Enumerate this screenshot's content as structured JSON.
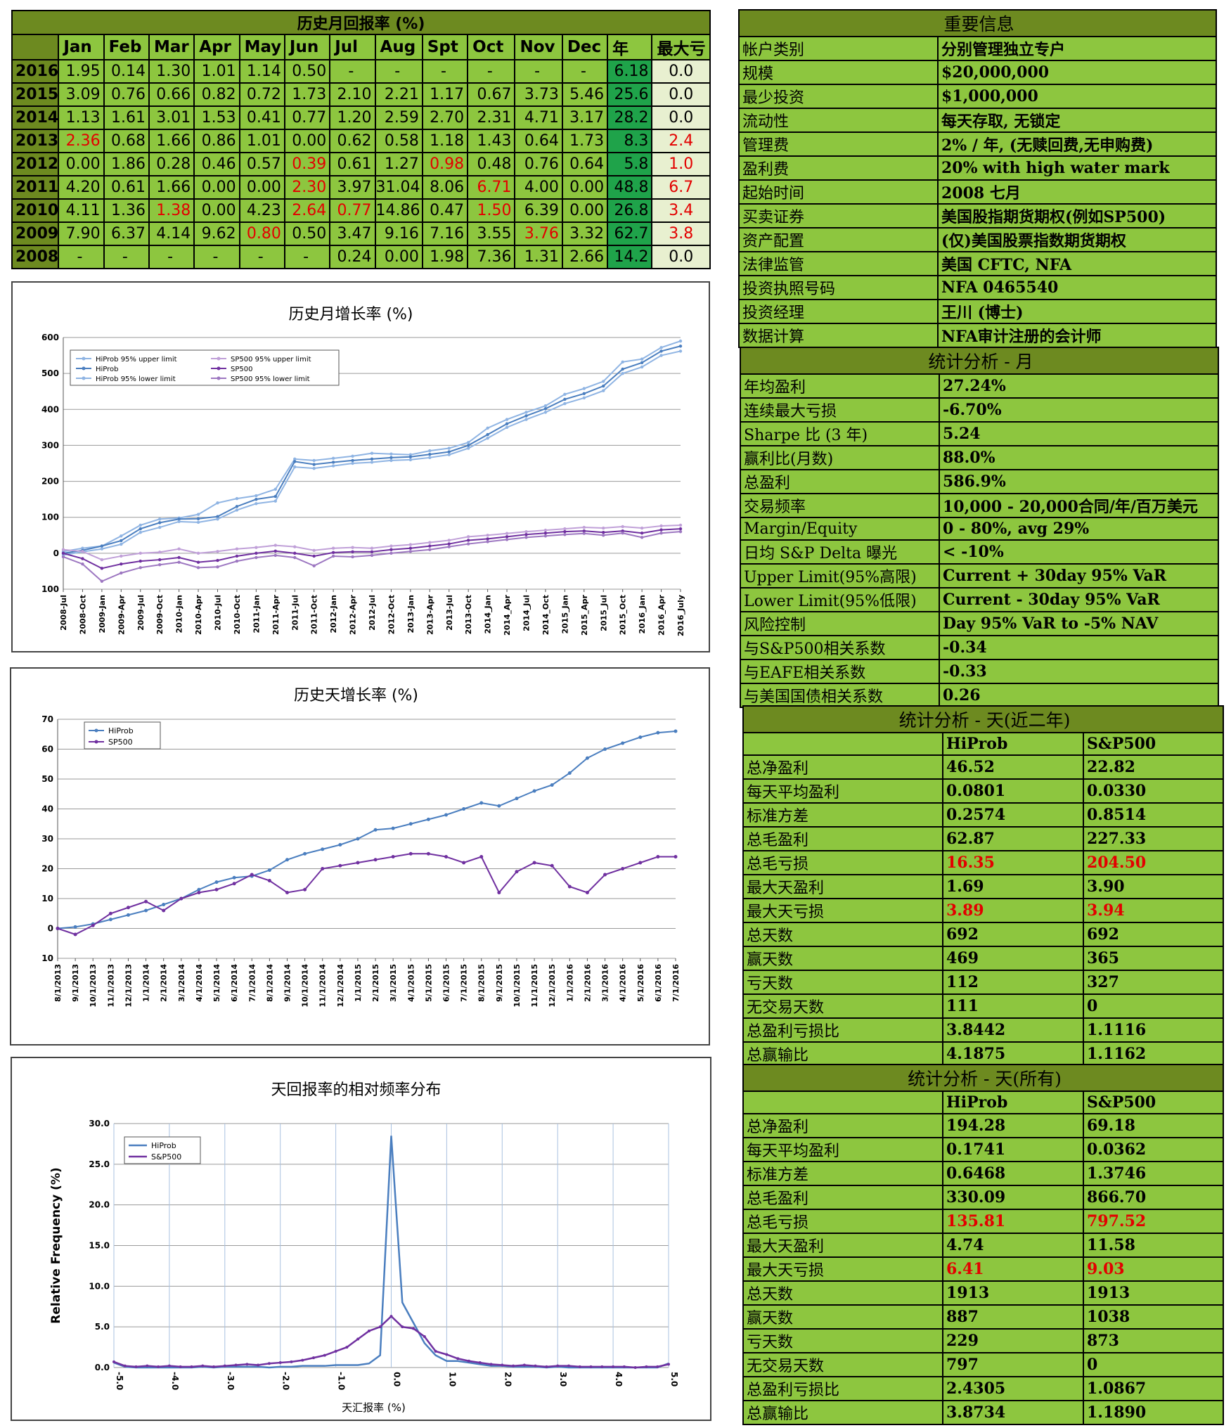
{
  "monthly_table": {
    "title": "历史月回报率 (%)",
    "headers": [
      "",
      "Jan",
      "Feb",
      "Mar",
      "Apr",
      "May",
      "Jun",
      "Jul",
      "Aug",
      "Spt",
      "Oct",
      "Nov",
      "Dec",
      "年",
      "最大亏"
    ],
    "rows": [
      {
        "year": "2016",
        "cells": [
          "1.95",
          "0.14",
          "1.30",
          "1.01",
          "1.14",
          "0.50",
          "-",
          "-",
          "-",
          "-",
          "-",
          "-"
        ],
        "red": [],
        "annual": "6.18",
        "maxdd": "0.0",
        "ddred": false
      },
      {
        "year": "2015",
        "cells": [
          "3.09",
          "0.76",
          "0.66",
          "0.82",
          "0.72",
          "1.73",
          "2.10",
          "2.21",
          "1.17",
          "0.67",
          "3.73",
          "5.46"
        ],
        "red": [],
        "annual": "25.6",
        "maxdd": "0.0",
        "ddred": false
      },
      {
        "year": "2014",
        "cells": [
          "1.13",
          "1.61",
          "3.01",
          "1.53",
          "0.41",
          "0.77",
          "1.20",
          "2.59",
          "2.70",
          "2.31",
          "4.71",
          "3.17"
        ],
        "red": [],
        "annual": "28.2",
        "maxdd": "0.0",
        "ddred": false
      },
      {
        "year": "2013",
        "cells": [
          "2.36",
          "0.68",
          "1.66",
          "0.86",
          "1.01",
          "0.00",
          "0.62",
          "0.58",
          "1.18",
          "1.43",
          "0.64",
          "1.73"
        ],
        "red": [
          0
        ],
        "annual": "8.3",
        "maxdd": "2.4",
        "ddred": true
      },
      {
        "year": "2012",
        "cells": [
          "0.00",
          "1.86",
          "0.28",
          "0.46",
          "0.57",
          "0.39",
          "0.61",
          "1.27",
          "0.98",
          "0.48",
          "0.76",
          "0.64"
        ],
        "red": [
          5,
          8
        ],
        "annual": "5.8",
        "maxdd": "1.0",
        "ddred": true
      },
      {
        "year": "2011",
        "cells": [
          "4.20",
          "0.61",
          "1.66",
          "0.00",
          "0.00",
          "2.30",
          "3.97",
          "31.04",
          "8.06",
          "6.71",
          "4.00",
          "0.00"
        ],
        "red": [
          5,
          9
        ],
        "annual": "48.8",
        "maxdd": "6.7",
        "ddred": true
      },
      {
        "year": "2010",
        "cells": [
          "4.11",
          "1.36",
          "1.38",
          "0.00",
          "4.23",
          "2.64",
          "0.77",
          "14.86",
          "0.47",
          "1.50",
          "6.39",
          "0.00"
        ],
        "red": [
          2,
          5,
          6,
          9
        ],
        "annual": "26.8",
        "maxdd": "3.4",
        "ddred": true
      },
      {
        "year": "2009",
        "cells": [
          "7.90",
          "6.37",
          "4.14",
          "9.62",
          "0.80",
          "0.50",
          "3.47",
          "9.16",
          "7.16",
          "3.55",
          "3.76",
          "3.32"
        ],
        "red": [
          4,
          10
        ],
        "annual": "62.7",
        "maxdd": "3.8",
        "ddred": true
      },
      {
        "year": "2008",
        "cells": [
          "-",
          "-",
          "-",
          "-",
          "-",
          "-",
          "0.24",
          "0.00",
          "1.98",
          "7.36",
          "1.31",
          "2.66"
        ],
        "red": [],
        "annual": "14.2",
        "maxdd": "0.0",
        "ddred": false
      }
    ]
  },
  "info_table": {
    "title": "重要信息",
    "rows": [
      [
        "帐户类别",
        "分别管理独立专户"
      ],
      [
        "规模",
        "$20,000,000"
      ],
      [
        "最少投资",
        "$1,000,000"
      ],
      [
        "流动性",
        "每天存取, 无锁定"
      ],
      [
        "管理费",
        "2% / 年, (无赎回费,无申购费)"
      ],
      [
        "盈利费",
        "20% with high water mark"
      ],
      [
        "起始时间",
        "2008 七月"
      ],
      [
        "买卖证券",
        "美国股指期货期权(例如SP500)"
      ],
      [
        "资产配置",
        "(仅)美国股票指数期货期权"
      ],
      [
        "法律监管",
        "美国 CFTC, NFA"
      ],
      [
        "投资执照号码",
        "NFA 0465540"
      ],
      [
        "投资经理",
        "王川 (博士)"
      ],
      [
        "数据计算",
        "NFA审计注册的会计师"
      ]
    ]
  },
  "stats_month": {
    "title": "统计分析 - 月",
    "rows": [
      [
        "年均盈利",
        "27.24%"
      ],
      [
        "连续最大亏损",
        "-6.70%"
      ],
      [
        "Sharpe 比 (3 年)",
        "5.24"
      ],
      [
        "赢利比(月数)",
        "88.0%"
      ],
      [
        "总盈利",
        "586.9%"
      ],
      [
        "交易频率",
        "10,000 - 20,000合同/年/百万美元"
      ],
      [
        "Margin/Equity",
        "0 - 80%, avg 29%"
      ],
      [
        "日均 S&P Delta 曝光",
        "< -10%"
      ],
      [
        "Upper Limit(95%高限)",
        "Current + 30day 95% VaR"
      ],
      [
        "Lower Limit(95%低限)",
        "Current - 30day 95% VaR"
      ],
      [
        "风险控制",
        "Day 95% VaR to -5% NAV"
      ],
      [
        "与S&P500相关系数",
        "-0.34"
      ],
      [
        "与EAFE相关系数",
        "-0.33"
      ],
      [
        "与美国国债相关系数",
        "0.26"
      ]
    ]
  },
  "stats_2y": {
    "title": "统计分析 - 天(近二年)",
    "cols": [
      "HiProb",
      "S&P500"
    ],
    "rows": [
      [
        "总净盈利",
        "46.52",
        "22.82",
        false
      ],
      [
        "每天平均盈利",
        "0.0801",
        "0.0330",
        false
      ],
      [
        "标准方差",
        "0.2574",
        "0.8514",
        false
      ],
      [
        "总毛盈利",
        "62.87",
        "227.33",
        false
      ],
      [
        "总毛亏损",
        "16.35",
        "204.50",
        true
      ],
      [
        "最大天盈利",
        "1.69",
        "3.90",
        false
      ],
      [
        "最大天亏损",
        "3.89",
        "3.94",
        true
      ],
      [
        "总天数",
        "692",
        "692",
        false
      ],
      [
        "赢天数",
        "469",
        "365",
        false
      ],
      [
        "亏天数",
        "112",
        "327",
        false
      ],
      [
        "无交易天数",
        "111",
        "0",
        false
      ],
      [
        "总盈利亏损比",
        "3.8442",
        "1.1116",
        false
      ],
      [
        "总赢输比",
        "4.1875",
        "1.1162",
        false
      ]
    ]
  },
  "stats_all": {
    "title": "统计分析 - 天(所有)",
    "cols": [
      "HiProb",
      "S&P500"
    ],
    "rows": [
      [
        "总净盈利",
        "194.28",
        "69.18",
        false
      ],
      [
        "每天平均盈利",
        "0.1741",
        "0.0362",
        false
      ],
      [
        "标准方差",
        "0.6468",
        "1.3746",
        false
      ],
      [
        "总毛盈利",
        "330.09",
        "866.70",
        false
      ],
      [
        "总毛亏损",
        "135.81",
        "797.52",
        true
      ],
      [
        "最大天盈利",
        "4.74",
        "11.58",
        false
      ],
      [
        "最大天亏损",
        "6.41",
        "9.03",
        true
      ],
      [
        "总天数",
        "1913",
        "1913",
        false
      ],
      [
        "赢天数",
        "887",
        "1038",
        false
      ],
      [
        "亏天数",
        "229",
        "873",
        false
      ],
      [
        "无交易天数",
        "797",
        "0",
        false
      ],
      [
        "总盈利亏损比",
        "2.4305",
        "1.0867",
        false
      ],
      [
        "总赢输比",
        "3.8734",
        "1.1890",
        false
      ]
    ]
  },
  "chart_data": [
    {
      "type": "line",
      "title": "历史月增长率 (%)",
      "x": [
        "2008-Jul",
        "2008-Oct",
        "2009-Jan",
        "2009-Apr",
        "2009-Jul",
        "2009-Oct",
        "2010-Jan",
        "2010-Apr",
        "2010-Jul",
        "2010-Oct",
        "2011-Jan",
        "2011-Apr",
        "2011-Jul",
        "2011-Oct",
        "2012-Jan",
        "2012-Apr",
        "2012-Jul",
        "2012-Oct",
        "2013-Jan",
        "2013-Apr",
        "2013-Jul",
        "2013-Oct",
        "2014_Jan",
        "2014_Apr",
        "2014_Jul",
        "2014_Oct",
        "2015_Jan",
        "2015_Apr",
        "2015_Jul",
        "2015_Oct",
        "2016_Jan",
        "2016_Apr",
        "2016_July"
      ],
      "ylim": [
        -100,
        600
      ],
      "yticks": [
        -100,
        0,
        100,
        200,
        300,
        400,
        500,
        600
      ],
      "ytick_labels": [
        "100",
        "0",
        "100",
        "200",
        "300",
        "400",
        "500",
        "600"
      ],
      "series": [
        {
          "name": "HiProb 95% upper limit",
          "color": "#8fb4e3",
          "values": [
            5,
            14,
            20,
            48,
            78,
            95,
            98,
            108,
            140,
            152,
            160,
            178,
            262,
            258,
            264,
            270,
            278,
            276,
            274,
            285,
            292,
            308,
            348,
            372,
            392,
            410,
            442,
            458,
            478,
            532,
            540,
            572,
            590
          ]
        },
        {
          "name": "HiProb",
          "color": "#4a7ebf",
          "values": [
            0,
            8,
            20,
            35,
            68,
            85,
            95,
            96,
            102,
            130,
            150,
            158,
            255,
            247,
            253,
            258,
            262,
            266,
            268,
            275,
            282,
            300,
            330,
            360,
            382,
            402,
            428,
            444,
            465,
            512,
            530,
            562,
            576
          ]
        },
        {
          "name": "HiProb 95% lower limit",
          "color": "#8fb4e3",
          "values": [
            -5,
            4,
            12,
            25,
            58,
            72,
            88,
            86,
            95,
            120,
            138,
            145,
            240,
            236,
            243,
            250,
            253,
            258,
            260,
            266,
            274,
            292,
            320,
            350,
            372,
            392,
            416,
            432,
            452,
            500,
            518,
            550,
            562
          ]
        },
        {
          "name": "SP500 95% upper limit",
          "color": "#c0a0d8",
          "values": [
            10,
            5,
            -18,
            -8,
            0,
            3,
            12,
            0,
            5,
            12,
            16,
            22,
            18,
            8,
            14,
            16,
            14,
            20,
            24,
            30,
            36,
            46,
            50,
            55,
            60,
            64,
            68,
            72,
            70,
            74,
            70,
            76,
            78
          ]
        },
        {
          "name": "SP500",
          "color": "#7030a0",
          "values": [
            0,
            -15,
            -42,
            -30,
            -22,
            -18,
            -12,
            -25,
            -20,
            -8,
            0,
            6,
            0,
            -8,
            2,
            4,
            4,
            10,
            14,
            20,
            26,
            36,
            40,
            46,
            52,
            56,
            60,
            62,
            58,
            62,
            56,
            65,
            68
          ]
        },
        {
          "name": "SP500 95% lower limit",
          "color": "#9d77c1",
          "values": [
            -10,
            -30,
            -78,
            -55,
            -40,
            -32,
            -25,
            -40,
            -38,
            -22,
            -12,
            -6,
            -12,
            -35,
            -8,
            -10,
            -6,
            0,
            5,
            10,
            18,
            26,
            32,
            38,
            44,
            48,
            52,
            55,
            50,
            56,
            44,
            56,
            60
          ]
        }
      ]
    },
    {
      "type": "line",
      "title": "历史天增长率 (%)",
      "x": [
        "8/1/2013",
        "9/1/2013",
        "10/1/2013",
        "11/1/2013",
        "12/1/2013",
        "1/1/2014",
        "2/1/2014",
        "3/1/2014",
        "4/1/2014",
        "5/1/2014",
        "6/1/2014",
        "7/1/2014",
        "8/1/2014",
        "9/1/2014",
        "10/1/2014",
        "11/1/2014",
        "12/1/2014",
        "1/1/2015",
        "2/1/2015",
        "3/1/2015",
        "4/1/2015",
        "5/1/2015",
        "6/1/2015",
        "7/1/2015",
        "8/1/2015",
        "9/1/2015",
        "10/1/2015",
        "11/1/2015",
        "12/1/2015",
        "1/1/2016",
        "2/1/2016",
        "3/1/2016",
        "4/1/2016",
        "5/1/2016",
        "6/1/2016",
        "7/1/2016"
      ],
      "ylim": [
        -10,
        70
      ],
      "yticks": [
        -10,
        0,
        10,
        20,
        30,
        40,
        50,
        60,
        70
      ],
      "ytick_labels": [
        "10",
        "0",
        "10",
        "20",
        "30",
        "40",
        "50",
        "60",
        "70"
      ],
      "series": [
        {
          "name": "HiProb",
          "color": "#4a7ebf",
          "values": [
            0,
            0.5,
            1.5,
            3,
            4.5,
            6,
            8,
            10,
            13,
            15.5,
            17,
            17.5,
            19.5,
            23,
            25,
            26.5,
            28,
            30,
            33,
            33.5,
            35,
            36.5,
            38,
            40,
            42,
            41,
            43.5,
            46,
            48,
            52,
            57,
            60,
            62,
            64,
            65.5,
            66
          ]
        },
        {
          "name": "SP500",
          "color": "#7030a0",
          "values": [
            0,
            -2,
            1,
            5,
            7,
            9,
            6,
            10,
            12,
            13,
            15,
            18,
            16,
            12,
            13,
            20,
            21,
            22,
            23,
            24,
            25,
            25,
            24,
            22,
            24,
            12,
            19,
            22,
            21,
            14,
            12,
            18,
            20,
            22,
            24,
            24
          ]
        }
      ]
    },
    {
      "type": "line",
      "title": "天回报率的相对频率分布",
      "xlabel": "天汇报率 (%)",
      "ylabel": "Relative Frequency (%)",
      "x": [
        -5.0,
        -4.8,
        -4.6,
        -4.4,
        -4.2,
        -4.0,
        -3.8,
        -3.6,
        -3.4,
        -3.2,
        -3.0,
        -2.8,
        -2.6,
        -2.4,
        -2.2,
        -2.0,
        -1.8,
        -1.6,
        -1.4,
        -1.2,
        -1.0,
        -0.8,
        -0.6,
        -0.4,
        -0.2,
        0.0,
        0.2,
        0.4,
        0.6,
        0.8,
        1.0,
        1.2,
        1.4,
        1.6,
        1.8,
        2.0,
        2.2,
        2.4,
        2.6,
        2.8,
        3.0,
        3.2,
        3.4,
        3.6,
        3.8,
        4.0,
        4.2,
        4.4,
        4.6,
        4.8,
        5.0
      ],
      "xticks": [
        -5.0,
        -4.0,
        -3.0,
        -2.0,
        -1.0,
        0.0,
        1.0,
        2.0,
        3.0,
        4.0,
        5.0
      ],
      "ylim": [
        0,
        30
      ],
      "yticks": [
        0.0,
        5.0,
        10.0,
        15.0,
        20.0,
        25.0,
        30.0
      ],
      "series": [
        {
          "name": "HiProb",
          "color": "#4a7ebf",
          "values": [
            0.6,
            0.1,
            0,
            0,
            0,
            0,
            0,
            0,
            0.1,
            0,
            0.1,
            0.1,
            0.1,
            0.1,
            0,
            0.1,
            0.1,
            0.2,
            0.2,
            0.2,
            0.3,
            0.3,
            0.3,
            0.5,
            1.5,
            28.5,
            8,
            5.5,
            3,
            1.5,
            0.8,
            0.8,
            0.6,
            0.4,
            0.2,
            0.2,
            0.1,
            0.1,
            0.1,
            0,
            0.1,
            0,
            0,
            0,
            0,
            0,
            0,
            0,
            0,
            0,
            0.5
          ]
        },
        {
          "name": "S&P500",
          "color": "#7030a0",
          "values": [
            0.7,
            0.2,
            0.1,
            0.2,
            0.1,
            0.2,
            0.1,
            0.1,
            0.2,
            0.1,
            0.2,
            0.3,
            0.4,
            0.3,
            0.5,
            0.6,
            0.7,
            0.9,
            1.2,
            1.5,
            2.0,
            2.5,
            3.5,
            4.5,
            5.0,
            6.3,
            5.0,
            4.8,
            3.8,
            2.0,
            1.6,
            1.1,
            0.8,
            0.6,
            0.4,
            0.3,
            0.2,
            0.3,
            0.2,
            0.1,
            0.2,
            0.2,
            0.1,
            0.1,
            0.1,
            0.1,
            0.1,
            0,
            0.1,
            0.1,
            0.4
          ]
        }
      ]
    }
  ]
}
